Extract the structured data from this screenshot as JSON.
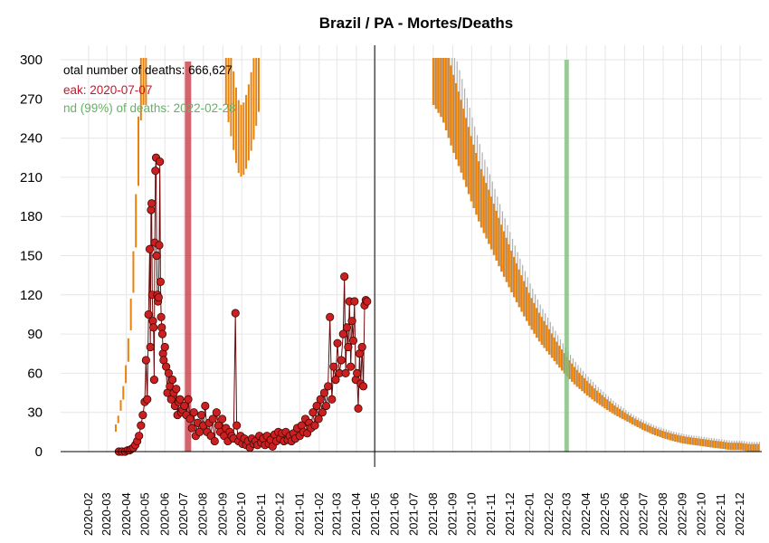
{
  "chart_data": {
    "type": "line",
    "title": "Brazil / PA - Mortes/Deaths",
    "xlabel": "",
    "ylabel": "",
    "ylim": [
      0,
      300
    ],
    "yticks": [
      0,
      30,
      60,
      90,
      120,
      150,
      180,
      210,
      240,
      270,
      300
    ],
    "xticks": [
      "2020-02",
      "2020-03",
      "2020-04",
      "2020-05",
      "2020-06",
      "2020-07",
      "2020-08",
      "2020-09",
      "2020-10",
      "2020-11",
      "2020-12",
      "2021-01",
      "2021-02",
      "2021-03",
      "2021-04",
      "2021-05",
      "2021-06",
      "2021-07",
      "2021-08",
      "2021-09",
      "2021-10",
      "2021-11",
      "2021-12",
      "2022-01",
      "2022-02",
      "2022-03",
      "2022-04",
      "2022-05",
      "2022-06",
      "2022-07",
      "2022-08",
      "2022-09",
      "2022-10",
      "2022-11",
      "2022-12"
    ],
    "annotations": {
      "total": "otal number of deaths: 666,627",
      "peak": "eak: 2020-07-07",
      "end": "nd (99%) of deaths: 2022-02-28"
    },
    "peak_date": "2020-07-07",
    "end_date": "2022-02-28",
    "today_date": "2021-04-30",
    "colors": {
      "observed_line": "#6b0a0a",
      "observed_point": "#cc1f1f",
      "forecast": "#e8820c",
      "forecast_band": "#b0b0b0",
      "peak_bar": "#c4303c",
      "end_bar": "#7fbf7f",
      "grid": "#e6e6e6"
    },
    "grid": true,
    "series": [
      {
        "kind": "observed",
        "points": [
          [
            "2020-03-20",
            0
          ],
          [
            "2020-03-25",
            0
          ],
          [
            "2020-03-30",
            0
          ],
          [
            "2020-04-03",
            1
          ],
          [
            "2020-04-06",
            1
          ],
          [
            "2020-04-09",
            2
          ],
          [
            "2020-04-12",
            3
          ],
          [
            "2020-04-15",
            5
          ],
          [
            "2020-04-18",
            8
          ],
          [
            "2020-04-21",
            12
          ],
          [
            "2020-04-24",
            20
          ],
          [
            "2020-04-27",
            28
          ],
          [
            "2020-04-30",
            38
          ],
          [
            "2020-05-02",
            70
          ],
          [
            "2020-05-04",
            40
          ],
          [
            "2020-05-06",
            105
          ],
          [
            "2020-05-08",
            155
          ],
          [
            "2020-05-09",
            80
          ],
          [
            "2020-05-10",
            185
          ],
          [
            "2020-05-11",
            190
          ],
          [
            "2020-05-12",
            120
          ],
          [
            "2020-05-13",
            100
          ],
          [
            "2020-05-14",
            95
          ],
          [
            "2020-05-15",
            55
          ],
          [
            "2020-05-16",
            160
          ],
          [
            "2020-05-17",
            215
          ],
          [
            "2020-05-18",
            225
          ],
          [
            "2020-05-19",
            150
          ],
          [
            "2020-05-20",
            120
          ],
          [
            "2020-05-21",
            115
          ],
          [
            "2020-05-22",
            118
          ],
          [
            "2020-05-23",
            158
          ],
          [
            "2020-05-24",
            222
          ],
          [
            "2020-05-25",
            130
          ],
          [
            "2020-05-26",
            103
          ],
          [
            "2020-05-27",
            95
          ],
          [
            "2020-05-28",
            90
          ],
          [
            "2020-05-29",
            75
          ],
          [
            "2020-05-30",
            70
          ],
          [
            "2020-06-01",
            80
          ],
          [
            "2020-06-03",
            65
          ],
          [
            "2020-06-05",
            45
          ],
          [
            "2020-06-07",
            60
          ],
          [
            "2020-06-09",
            50
          ],
          [
            "2020-06-11",
            40
          ],
          [
            "2020-06-13",
            55
          ],
          [
            "2020-06-15",
            45
          ],
          [
            "2020-06-17",
            35
          ],
          [
            "2020-06-19",
            48
          ],
          [
            "2020-06-21",
            28
          ],
          [
            "2020-06-23",
            38
          ],
          [
            "2020-06-25",
            40
          ],
          [
            "2020-06-27",
            30
          ],
          [
            "2020-06-29",
            32
          ],
          [
            "2020-07-02",
            35
          ],
          [
            "2020-07-05",
            28
          ],
          [
            "2020-07-08",
            40
          ],
          [
            "2020-07-11",
            25
          ],
          [
            "2020-07-14",
            18
          ],
          [
            "2020-07-17",
            30
          ],
          [
            "2020-07-20",
            12
          ],
          [
            "2020-07-23",
            22
          ],
          [
            "2020-07-26",
            15
          ],
          [
            "2020-07-29",
            28
          ],
          [
            "2020-08-01",
            20
          ],
          [
            "2020-08-04",
            35
          ],
          [
            "2020-08-07",
            15
          ],
          [
            "2020-08-10",
            22
          ],
          [
            "2020-08-13",
            12
          ],
          [
            "2020-08-16",
            25
          ],
          [
            "2020-08-19",
            8
          ],
          [
            "2020-08-22",
            30
          ],
          [
            "2020-08-25",
            20
          ],
          [
            "2020-08-28",
            15
          ],
          [
            "2020-08-31",
            25
          ],
          [
            "2020-09-03",
            12
          ],
          [
            "2020-09-06",
            18
          ],
          [
            "2020-09-09",
            8
          ],
          [
            "2020-09-12",
            15
          ],
          [
            "2020-09-15",
            12
          ],
          [
            "2020-09-18",
            10
          ],
          [
            "2020-09-21",
            106
          ],
          [
            "2020-09-23",
            20
          ],
          [
            "2020-09-26",
            8
          ],
          [
            "2020-09-29",
            12
          ],
          [
            "2020-10-02",
            6
          ],
          [
            "2020-10-05",
            10
          ],
          [
            "2020-10-08",
            5
          ],
          [
            "2020-10-11",
            8
          ],
          [
            "2020-10-14",
            3
          ],
          [
            "2020-10-17",
            10
          ],
          [
            "2020-10-20",
            6
          ],
          [
            "2020-10-23",
            8
          ],
          [
            "2020-10-26",
            5
          ],
          [
            "2020-10-29",
            12
          ],
          [
            "2020-11-01",
            7
          ],
          [
            "2020-11-04",
            10
          ],
          [
            "2020-11-07",
            5
          ],
          [
            "2020-11-10",
            12
          ],
          [
            "2020-11-13",
            6
          ],
          [
            "2020-11-16",
            9
          ],
          [
            "2020-11-19",
            4
          ],
          [
            "2020-11-22",
            13
          ],
          [
            "2020-11-25",
            8
          ],
          [
            "2020-11-28",
            15
          ],
          [
            "2020-12-01",
            10
          ],
          [
            "2020-12-04",
            14
          ],
          [
            "2020-12-07",
            8
          ],
          [
            "2020-12-10",
            15
          ],
          [
            "2020-12-13",
            9
          ],
          [
            "2020-12-16",
            12
          ],
          [
            "2020-12-19",
            8
          ],
          [
            "2020-12-22",
            14
          ],
          [
            "2020-12-25",
            10
          ],
          [
            "2020-12-28",
            18
          ],
          [
            "2021-01-01",
            12
          ],
          [
            "2021-01-04",
            20
          ],
          [
            "2021-01-07",
            15
          ],
          [
            "2021-01-10",
            25
          ],
          [
            "2021-01-13",
            14
          ],
          [
            "2021-01-16",
            22
          ],
          [
            "2021-01-19",
            18
          ],
          [
            "2021-01-22",
            30
          ],
          [
            "2021-01-25",
            20
          ],
          [
            "2021-01-28",
            35
          ],
          [
            "2021-01-31",
            25
          ],
          [
            "2021-02-03",
            40
          ],
          [
            "2021-02-06",
            30
          ],
          [
            "2021-02-09",
            45
          ],
          [
            "2021-02-12",
            35
          ],
          [
            "2021-02-15",
            50
          ],
          [
            "2021-02-18",
            103
          ],
          [
            "2021-02-21",
            40
          ],
          [
            "2021-02-24",
            65
          ],
          [
            "2021-02-27",
            55
          ],
          [
            "2021-03-02",
            83
          ],
          [
            "2021-03-05",
            60
          ],
          [
            "2021-03-08",
            70
          ],
          [
            "2021-03-11",
            90
          ],
          [
            "2021-03-13",
            134
          ],
          [
            "2021-03-15",
            60
          ],
          [
            "2021-03-17",
            95
          ],
          [
            "2021-03-19",
            80
          ],
          [
            "2021-03-21",
            115
          ],
          [
            "2021-03-23",
            65
          ],
          [
            "2021-03-25",
            100
          ],
          [
            "2021-03-27",
            85
          ],
          [
            "2021-03-29",
            115
          ],
          [
            "2021-03-31",
            55
          ],
          [
            "2021-04-02",
            60
          ],
          [
            "2021-04-04",
            33
          ],
          [
            "2021-04-06",
            75
          ],
          [
            "2021-04-08",
            52
          ],
          [
            "2021-04-10",
            80
          ],
          [
            "2021-04-12",
            50
          ],
          [
            "2021-04-14",
            112
          ],
          [
            "2021-04-16",
            116
          ],
          [
            "2021-04-18",
            115
          ]
        ]
      },
      {
        "kind": "forecast_early",
        "points": [
          [
            "2020-03-15",
            18
          ],
          [
            "2020-03-18",
            22
          ],
          [
            "2020-03-21",
            30
          ],
          [
            "2020-03-24",
            38
          ],
          [
            "2020-03-27",
            45
          ],
          [
            "2020-03-30",
            55
          ],
          [
            "2020-04-03",
            72
          ],
          [
            "2020-04-07",
            95
          ],
          [
            "2020-04-10",
            125
          ],
          [
            "2020-04-14",
            150
          ],
          [
            "2020-04-17",
            190
          ],
          [
            "2020-04-20",
            230
          ],
          [
            "2020-04-23",
            280
          ],
          [
            "2020-04-26",
            300
          ],
          [
            "2020-05-01",
            300
          ],
          [
            "2020-05-05",
            300
          ]
        ]
      },
      {
        "kind": "forecast_oct2020",
        "points": [
          [
            "2020-09-06",
            300
          ],
          [
            "2020-09-10",
            285
          ],
          [
            "2020-09-15",
            270
          ],
          [
            "2020-09-20",
            255
          ],
          [
            "2020-09-25",
            242
          ],
          [
            "2020-09-30",
            238
          ],
          [
            "2020-10-05",
            240
          ],
          [
            "2020-10-10",
            248
          ],
          [
            "2020-10-15",
            258
          ],
          [
            "2020-10-20",
            270
          ],
          [
            "2020-10-25",
            285
          ],
          [
            "2020-10-30",
            300
          ]
        ]
      },
      {
        "kind": "forecast_main",
        "points": [
          [
            "2021-08-01",
            300
          ],
          [
            "2021-08-15",
            288
          ],
          [
            "2021-09-01",
            260
          ],
          [
            "2021-09-15",
            240
          ],
          [
            "2021-10-01",
            215
          ],
          [
            "2021-10-15",
            195
          ],
          [
            "2021-11-01",
            175
          ],
          [
            "2021-11-15",
            158
          ],
          [
            "2021-12-01",
            140
          ],
          [
            "2021-12-15",
            125
          ],
          [
            "2022-01-01",
            108
          ],
          [
            "2022-01-15",
            96
          ],
          [
            "2022-02-01",
            84
          ],
          [
            "2022-02-15",
            74
          ],
          [
            "2022-03-01",
            65
          ],
          [
            "2022-03-15",
            57
          ],
          [
            "2022-04-01",
            49
          ],
          [
            "2022-04-15",
            43
          ],
          [
            "2022-05-01",
            37
          ],
          [
            "2022-05-15",
            32
          ],
          [
            "2022-06-01",
            27
          ],
          [
            "2022-06-15",
            23
          ],
          [
            "2022-07-01",
            19
          ],
          [
            "2022-07-15",
            16
          ],
          [
            "2022-08-01",
            13
          ],
          [
            "2022-08-15",
            11
          ],
          [
            "2022-09-01",
            9
          ],
          [
            "2022-09-15",
            8
          ],
          [
            "2022-10-01",
            7
          ],
          [
            "2022-10-15",
            6
          ],
          [
            "2022-11-01",
            5
          ],
          [
            "2022-11-15",
            4
          ],
          [
            "2022-12-01",
            4
          ],
          [
            "2022-12-15",
            3
          ],
          [
            "2022-12-31",
            3
          ]
        ]
      }
    ]
  }
}
